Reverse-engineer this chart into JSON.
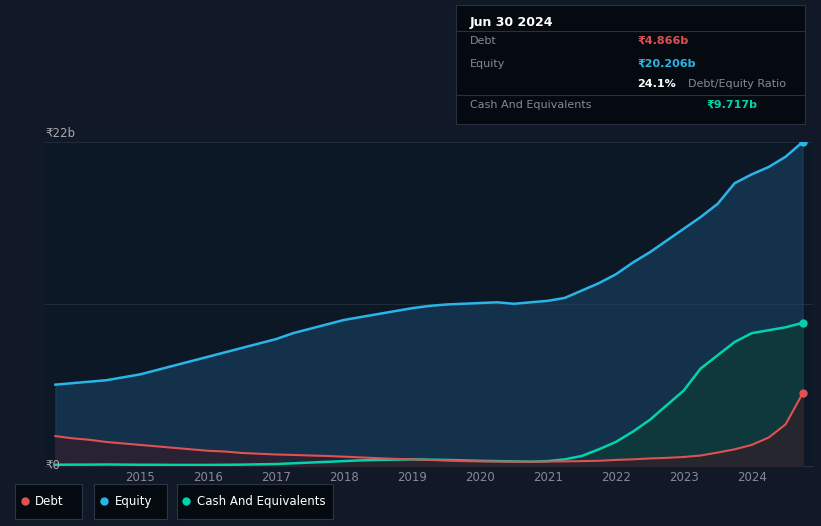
{
  "background_color": "#111827",
  "chart_bg_color": "#0d1826",
  "ylim": [
    0,
    22
  ],
  "xlim": [
    2013.6,
    2024.9
  ],
  "x_ticks": [
    2015,
    2016,
    2017,
    2018,
    2019,
    2020,
    2021,
    2022,
    2023,
    2024
  ],
  "equity_color": "#29b5e8",
  "debt_color": "#e05252",
  "cash_color": "#00d4aa",
  "ylabel_text": "₹22b",
  "y0_text": "₹0",
  "equity_data": {
    "years": [
      2013.75,
      2014.0,
      2014.25,
      2014.5,
      2014.75,
      2015.0,
      2015.25,
      2015.5,
      2015.75,
      2016.0,
      2016.25,
      2016.5,
      2016.75,
      2017.0,
      2017.25,
      2017.5,
      2017.75,
      2018.0,
      2018.25,
      2018.5,
      2018.75,
      2019.0,
      2019.25,
      2019.5,
      2019.75,
      2020.0,
      2020.25,
      2020.5,
      2020.75,
      2021.0,
      2021.25,
      2021.5,
      2021.75,
      2022.0,
      2022.25,
      2022.5,
      2022.75,
      2023.0,
      2023.25,
      2023.5,
      2023.75,
      2024.0,
      2024.25,
      2024.5,
      2024.75
    ],
    "values": [
      5.5,
      5.6,
      5.7,
      5.8,
      6.0,
      6.2,
      6.5,
      6.8,
      7.1,
      7.4,
      7.7,
      8.0,
      8.3,
      8.6,
      9.0,
      9.3,
      9.6,
      9.9,
      10.1,
      10.3,
      10.5,
      10.7,
      10.85,
      10.95,
      11.0,
      11.05,
      11.1,
      11.0,
      11.1,
      11.2,
      11.4,
      11.9,
      12.4,
      13.0,
      13.8,
      14.5,
      15.3,
      16.1,
      16.9,
      17.8,
      19.2,
      19.8,
      20.3,
      21.0,
      22.0
    ]
  },
  "debt_data": {
    "years": [
      2013.75,
      2014.0,
      2014.25,
      2014.5,
      2014.75,
      2015.0,
      2015.25,
      2015.5,
      2015.75,
      2016.0,
      2016.25,
      2016.5,
      2016.75,
      2017.0,
      2017.25,
      2017.5,
      2017.75,
      2018.0,
      2018.25,
      2018.5,
      2018.75,
      2019.0,
      2019.25,
      2019.5,
      2019.75,
      2020.0,
      2020.25,
      2020.5,
      2020.75,
      2021.0,
      2021.25,
      2021.5,
      2021.75,
      2022.0,
      2022.25,
      2022.5,
      2022.75,
      2023.0,
      2023.25,
      2023.5,
      2023.75,
      2024.0,
      2024.25,
      2024.5,
      2024.75
    ],
    "values": [
      2.0,
      1.85,
      1.75,
      1.6,
      1.5,
      1.4,
      1.3,
      1.2,
      1.1,
      1.0,
      0.95,
      0.85,
      0.8,
      0.75,
      0.72,
      0.68,
      0.65,
      0.6,
      0.55,
      0.5,
      0.45,
      0.42,
      0.38,
      0.34,
      0.3,
      0.28,
      0.27,
      0.26,
      0.26,
      0.27,
      0.28,
      0.3,
      0.32,
      0.38,
      0.42,
      0.48,
      0.52,
      0.58,
      0.68,
      0.88,
      1.1,
      1.4,
      1.9,
      2.8,
      4.9
    ]
  },
  "cash_data": {
    "years": [
      2013.75,
      2014.0,
      2014.25,
      2014.5,
      2014.75,
      2015.0,
      2015.25,
      2015.5,
      2015.75,
      2016.0,
      2016.25,
      2016.5,
      2016.75,
      2017.0,
      2017.25,
      2017.5,
      2017.75,
      2018.0,
      2018.25,
      2018.5,
      2018.75,
      2019.0,
      2019.25,
      2019.5,
      2019.75,
      2020.0,
      2020.25,
      2020.5,
      2020.75,
      2021.0,
      2021.25,
      2021.5,
      2021.75,
      2022.0,
      2022.25,
      2022.5,
      2022.75,
      2023.0,
      2023.25,
      2023.5,
      2023.75,
      2024.0,
      2024.25,
      2024.5,
      2024.75
    ],
    "values": [
      0.05,
      0.06,
      0.06,
      0.07,
      0.06,
      0.05,
      0.05,
      0.04,
      0.04,
      0.04,
      0.05,
      0.06,
      0.08,
      0.1,
      0.15,
      0.2,
      0.25,
      0.3,
      0.35,
      0.38,
      0.4,
      0.42,
      0.4,
      0.38,
      0.35,
      0.32,
      0.3,
      0.28,
      0.26,
      0.3,
      0.42,
      0.65,
      1.1,
      1.6,
      2.3,
      3.1,
      4.1,
      5.1,
      6.6,
      7.5,
      8.4,
      9.0,
      9.2,
      9.4,
      9.7
    ]
  },
  "tooltip": {
    "title": "Jun 30 2024",
    "rows": [
      {
        "label": "Debt",
        "value": "₹4.866b",
        "value_color": "#e05252",
        "separator_before": true
      },
      {
        "label": "Equity",
        "value": "₹20.206b",
        "value_color": "#29b5e8",
        "separator_before": false
      },
      {
        "label": "",
        "value_bold": "24.1%",
        "value_rest": " Debt/Equity Ratio",
        "separator_before": false
      },
      {
        "label": "Cash And Equivalents",
        "value": "₹9.717b",
        "value_color": "#00d4aa",
        "separator_before": true
      }
    ]
  },
  "legend_items": [
    {
      "label": "Debt",
      "color": "#e05252"
    },
    {
      "label": "Equity",
      "color": "#29b5e8"
    },
    {
      "label": "Cash And Equivalents",
      "color": "#00d4aa"
    }
  ]
}
